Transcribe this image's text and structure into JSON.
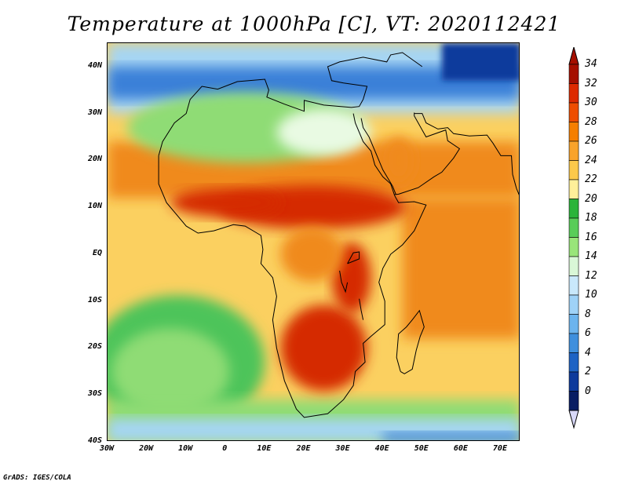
{
  "title": "Temperature at 1000hPa [C], VT: 2020112421",
  "credit": "GrADS: IGES/COLA",
  "lat_labels": [
    {
      "text": "40N",
      "lat": 40
    },
    {
      "text": "30N",
      "lat": 30
    },
    {
      "text": "20N",
      "lat": 20
    },
    {
      "text": "10N",
      "lat": 10
    },
    {
      "text": "EQ",
      "lat": 0
    },
    {
      "text": "10S",
      "lat": -10
    },
    {
      "text": "20S",
      "lat": -20
    },
    {
      "text": "30S",
      "lat": -30
    },
    {
      "text": "40S",
      "lat": -40
    }
  ],
  "lon_labels": [
    {
      "text": "30W",
      "lon": -30
    },
    {
      "text": "20W",
      "lon": -20
    },
    {
      "text": "10W",
      "lon": -10
    },
    {
      "text": "0",
      "lon": 0
    },
    {
      "text": "10E",
      "lon": 10
    },
    {
      "text": "20E",
      "lon": 20
    },
    {
      "text": "30E",
      "lon": 30
    },
    {
      "text": "40E",
      "lon": 40
    },
    {
      "text": "50E",
      "lon": 50
    },
    {
      "text": "60E",
      "lon": 60
    },
    {
      "text": "70E",
      "lon": 70
    }
  ],
  "colorbar": {
    "labels": [
      "34",
      "32",
      "30",
      "28",
      "26",
      "24",
      "22",
      "20",
      "18",
      "16",
      "14",
      "12",
      "10",
      "8",
      "6",
      "4",
      "2",
      "0"
    ],
    "colors": [
      "#a50f00",
      "#dd2a00",
      "#ee4d00",
      "#f57f00",
      "#f9a32b",
      "#fcc94a",
      "#fff09a",
      "#2bb43a",
      "#59cd59",
      "#99e57a",
      "#d9f7d7",
      "#c9e8fb",
      "#9fd2f7",
      "#6cb4ee",
      "#3f8fdd",
      "#1e63c4",
      "#0d3a9c",
      "#081d63"
    ],
    "over_color": "#a50f00",
    "under_color": "#d8d8f8"
  },
  "field_colors": {
    "hot": "#d52a00",
    "warm": "#f08a1a",
    "mild": "#fbd060",
    "cool_green": "#4dc45a",
    "light_green": "#8fdc74",
    "pale": "#e9fae3",
    "light_blue": "#a6d5f3",
    "blue": "#3a80d8",
    "deep_blue": "#0d3a9c"
  }
}
